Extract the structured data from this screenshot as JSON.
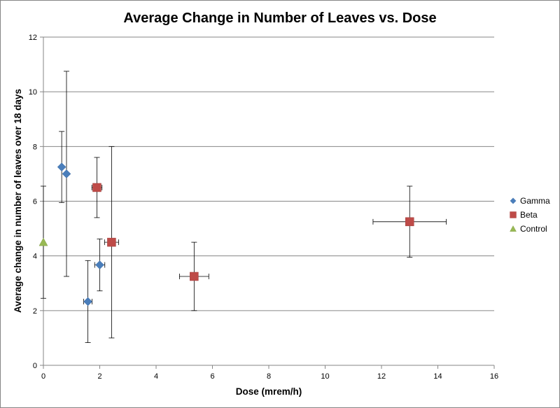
{
  "chart_data": {
    "type": "scatter",
    "title": "Average Change in Number of  Leaves vs. Dose",
    "xlabel": "Dose (mrem/h)",
    "ylabel": "Average change in number of leaves over 18 days",
    "xlim": [
      0,
      16
    ],
    "ylim": [
      0,
      12
    ],
    "xticks": [
      "0",
      "2",
      "4",
      "6",
      "8",
      "10",
      "12",
      "14",
      "16"
    ],
    "yticks": [
      "0",
      "2",
      "4",
      "6",
      "8",
      "10",
      "12"
    ],
    "grid": "horizontal",
    "legend_position": "right",
    "series": [
      {
        "name": "Gamma",
        "marker": "diamond",
        "color": "#4a7ebb",
        "points": [
          {
            "x": 0.65,
            "y": 7.25,
            "y_err_low": 1.3,
            "y_err_high": 1.3,
            "x_err": 0
          },
          {
            "x": 0.82,
            "y": 7.0,
            "y_err_low": 3.75,
            "y_err_high": 3.75,
            "x_err": 0
          },
          {
            "x": 1.58,
            "y": 2.33,
            "y_err_low": 1.5,
            "y_err_high": 1.5,
            "x_err": 0.15
          },
          {
            "x": 2.0,
            "y": 3.67,
            "y_err_low": 0.95,
            "y_err_high": 0.95,
            "x_err": 0.18
          }
        ]
      },
      {
        "name": "Beta",
        "marker": "square",
        "color": "#be4b48",
        "points": [
          {
            "x": 1.9,
            "y": 6.5,
            "y_err_low": 1.1,
            "y_err_high": 1.1,
            "x_err": 0.18
          },
          {
            "x": 2.42,
            "y": 4.5,
            "y_err_low": 3.5,
            "y_err_high": 3.5,
            "x_err": 0.25
          },
          {
            "x": 5.35,
            "y": 3.25,
            "y_err_low": 1.25,
            "y_err_high": 1.25,
            "x_err": 0.52
          },
          {
            "x": 13.0,
            "y": 5.25,
            "y_err_low": 1.3,
            "y_err_high": 1.3,
            "x_err": 1.3
          }
        ]
      },
      {
        "name": "Control",
        "marker": "triangle",
        "color": "#98b954",
        "points": [
          {
            "x": 0.0,
            "y": 4.5,
            "y_err_low": 2.05,
            "y_err_high": 2.05,
            "x_err": 0
          }
        ]
      }
    ]
  }
}
